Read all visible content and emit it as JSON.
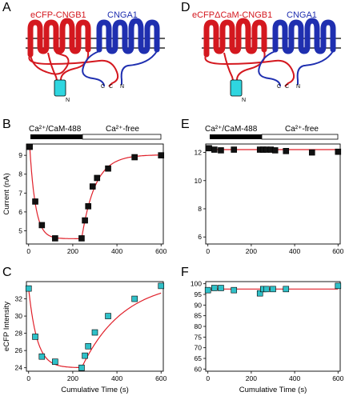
{
  "panels": {
    "A": "A",
    "B": "B",
    "C": "C",
    "D": "D",
    "E": "E",
    "F": "F"
  },
  "schematic_left": {
    "red_label": "eCFP-CNGB1",
    "blue_label": "CNGA1",
    "terminals": [
      "C",
      "N",
      "C",
      "N"
    ]
  },
  "schematic_right": {
    "red_label": "eCFPΔCaM-CNGB1",
    "blue_label": "CNGA1",
    "terminals": [
      "C",
      "N",
      "C",
      "N"
    ]
  },
  "conditions": {
    "ca_label": "Ca²⁺/CaM-488",
    "free_label": "Ca²⁺-free"
  },
  "colors": {
    "red": "#d4181f",
    "blue": "#1f2fb0",
    "cyan": "#2fc0c8",
    "fit": "#e0202a"
  },
  "chart_data": [
    {
      "panel": "B",
      "type": "scatter",
      "xlabel": "",
      "ylabel": "Current (nA)",
      "xlim": [
        -10,
        610
      ],
      "ylim": [
        4.3,
        9.6
      ],
      "xticks": [
        0,
        200,
        400,
        600
      ],
      "yticks": [
        5,
        6,
        7,
        8,
        9
      ],
      "marker_color": "#111111",
      "x": [
        5,
        30,
        60,
        120,
        240,
        255,
        270,
        290,
        310,
        360,
        480,
        600
      ],
      "y": [
        9.45,
        6.55,
        5.3,
        4.6,
        4.6,
        5.55,
        6.3,
        7.35,
        7.8,
        8.3,
        8.9,
        9.0
      ],
      "fit": "double exponential (decay then recovery)"
    },
    {
      "panel": "C",
      "type": "scatter",
      "xlabel": "Cumulative Time (s)",
      "ylabel": "eCFP Intensity",
      "xlim": [
        -10,
        610
      ],
      "ylim": [
        23.6,
        34.0
      ],
      "xticks": [
        0,
        200,
        400,
        600
      ],
      "yticks": [
        24,
        26,
        28,
        30,
        32
      ],
      "marker_color": "#2fc0c8",
      "x": [
        0,
        30,
        60,
        120,
        240,
        255,
        270,
        300,
        360,
        480,
        600
      ],
      "y": [
        33.2,
        27.6,
        25.3,
        24.7,
        24.0,
        25.4,
        26.5,
        28.1,
        30.0,
        32.0,
        33.5
      ],
      "fit": "double exponential (decay then recovery)"
    },
    {
      "panel": "E",
      "type": "scatter",
      "xlabel": "",
      "ylabel": "",
      "xlim": [
        -10,
        610
      ],
      "ylim": [
        5.5,
        12.6
      ],
      "xticks": [
        0,
        200,
        400,
        600
      ],
      "yticks": [
        6,
        8,
        10,
        12
      ],
      "marker_color": "#111111",
      "x": [
        5,
        30,
        60,
        120,
        240,
        255,
        270,
        290,
        310,
        360,
        480,
        600
      ],
      "y": [
        12.3,
        12.2,
        12.15,
        12.2,
        12.2,
        12.2,
        12.2,
        12.2,
        12.15,
        12.1,
        12.0,
        12.05
      ],
      "fit": "flat line at 12.2"
    },
    {
      "panel": "F",
      "type": "scatter",
      "xlabel": "Cumulative Time (s)",
      "ylabel": "",
      "xlim": [
        -10,
        610
      ],
      "ylim": [
        59,
        101
      ],
      "xticks": [
        0,
        200,
        400,
        600
      ],
      "yticks": [
        60,
        65,
        70,
        75,
        80,
        85,
        90,
        95,
        100
      ],
      "marker_color": "#2fc0c8",
      "x": [
        0,
        30,
        60,
        120,
        240,
        255,
        270,
        300,
        360,
        600
      ],
      "y": [
        97,
        98,
        98,
        97,
        95.5,
        97.5,
        97.5,
        97.5,
        97.5,
        99
      ],
      "fit": "flat line at 97.5"
    }
  ]
}
